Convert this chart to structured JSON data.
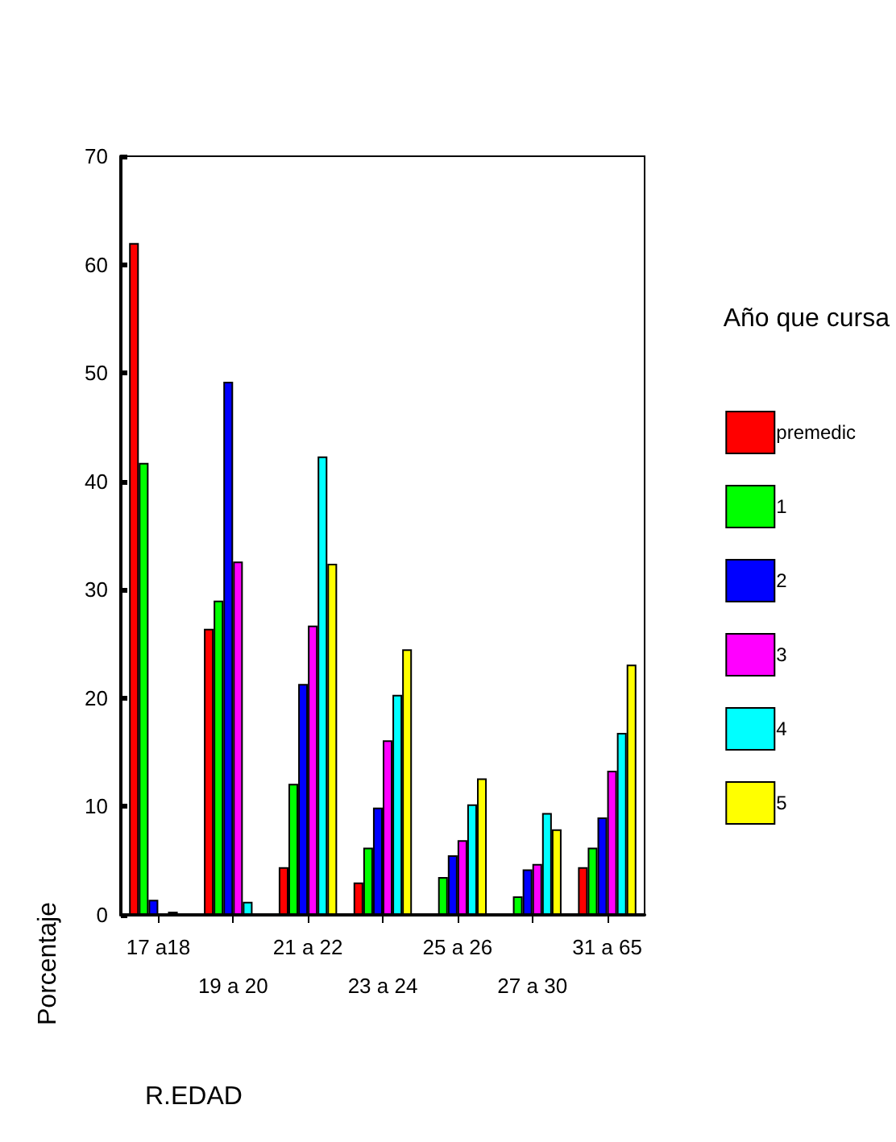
{
  "chart_data": {
    "type": "bar",
    "xlabel": "R.EDAD",
    "ylabel": "Porcentaje",
    "legend_title": "Año que cursa",
    "categories": [
      "17 a18",
      "19 a 20",
      "21 a 22",
      "23 a 24",
      "25 a 26",
      "27 a 30",
      "31 a 65"
    ],
    "series": [
      {
        "name": "premedic",
        "color": "#ff0000",
        "values": [
          62,
          26.4,
          4.4,
          3.0,
          0,
          0,
          4.4
        ]
      },
      {
        "name": "1",
        "color": "#00ff00",
        "values": [
          41.7,
          29.0,
          12.1,
          6.2,
          3.5,
          1.7,
          6.2
        ]
      },
      {
        "name": "2",
        "color": "#0000ff",
        "values": [
          1.4,
          49.2,
          21.3,
          9.9,
          5.5,
          4.2,
          9.0
        ]
      },
      {
        "name": "3",
        "color": "#ff00ff",
        "values": [
          0,
          32.6,
          26.7,
          16.1,
          6.9,
          4.7,
          13.3
        ]
      },
      {
        "name": "4",
        "color": "#00ffff",
        "values": [
          0.3,
          1.2,
          42.3,
          20.3,
          10.2,
          9.4,
          16.8
        ]
      },
      {
        "name": "5",
        "color": "#ffff00",
        "values": [
          0,
          0,
          32.4,
          24.5,
          12.6,
          7.9,
          23.1
        ]
      }
    ],
    "ylim": [
      0,
      70
    ],
    "yticks": [
      0,
      10,
      20,
      30,
      40,
      50,
      60,
      70
    ],
    "grid": false,
    "legend": "right"
  }
}
